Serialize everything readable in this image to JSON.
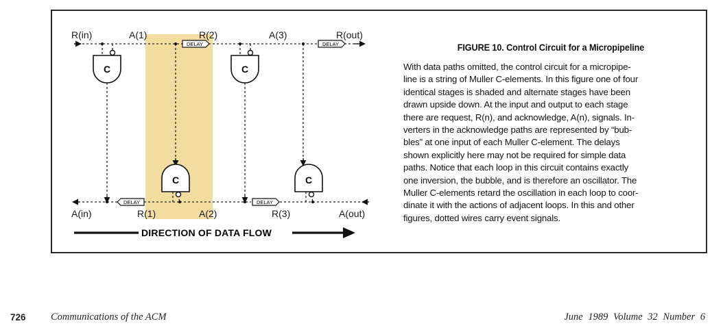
{
  "figure": {
    "signal_labels": {
      "r_in": "R(in)",
      "a_1": "A(1)",
      "r_2": "R(2)",
      "a_3": "A(3)",
      "r_out": "R(out)",
      "a_in": "A(in)",
      "r_1": "R(1)",
      "a_2": "A(2)",
      "r_3": "R(3)",
      "a_out": "A(out)"
    },
    "gate_label": "C",
    "delay_label": "DELAY",
    "flow_label": "DIRECTION OF DATA FLOW",
    "highlight_color": "#f3dca0"
  },
  "caption": {
    "title": "FIGURE 10.   Control Circuit for a Micropipeline",
    "lines": [
      "With data paths omitted, the control circuit for a micropipe-",
      "line is a string of Muller C-elements. In this figure one of four",
      "identical stages is shaded and alternate stages have been",
      "drawn upside down. At the input and output to each stage",
      "there are request, R(n), and acknowledge, A(n), signals. In-",
      "verters in the acknowledge paths are represented by “bub-",
      "bles” at one input of each Muller C-element. The delays",
      "shown explicitly here may not be required for simple data",
      "paths. Notice that each loop in this circuit contains exactly",
      "one inversion, the bubble, and is therefore an oscillator. The",
      "Muller C-elements retard the oscillation in each loop to coor-",
      "dinate it with the actions of adjacent loops. In this and other",
      "figures, dotted wires carry event signals."
    ]
  },
  "footer": {
    "page_number": "726",
    "journal": "Communications of the ACM",
    "issue": "June 1989  Volume 32  Number 6"
  }
}
